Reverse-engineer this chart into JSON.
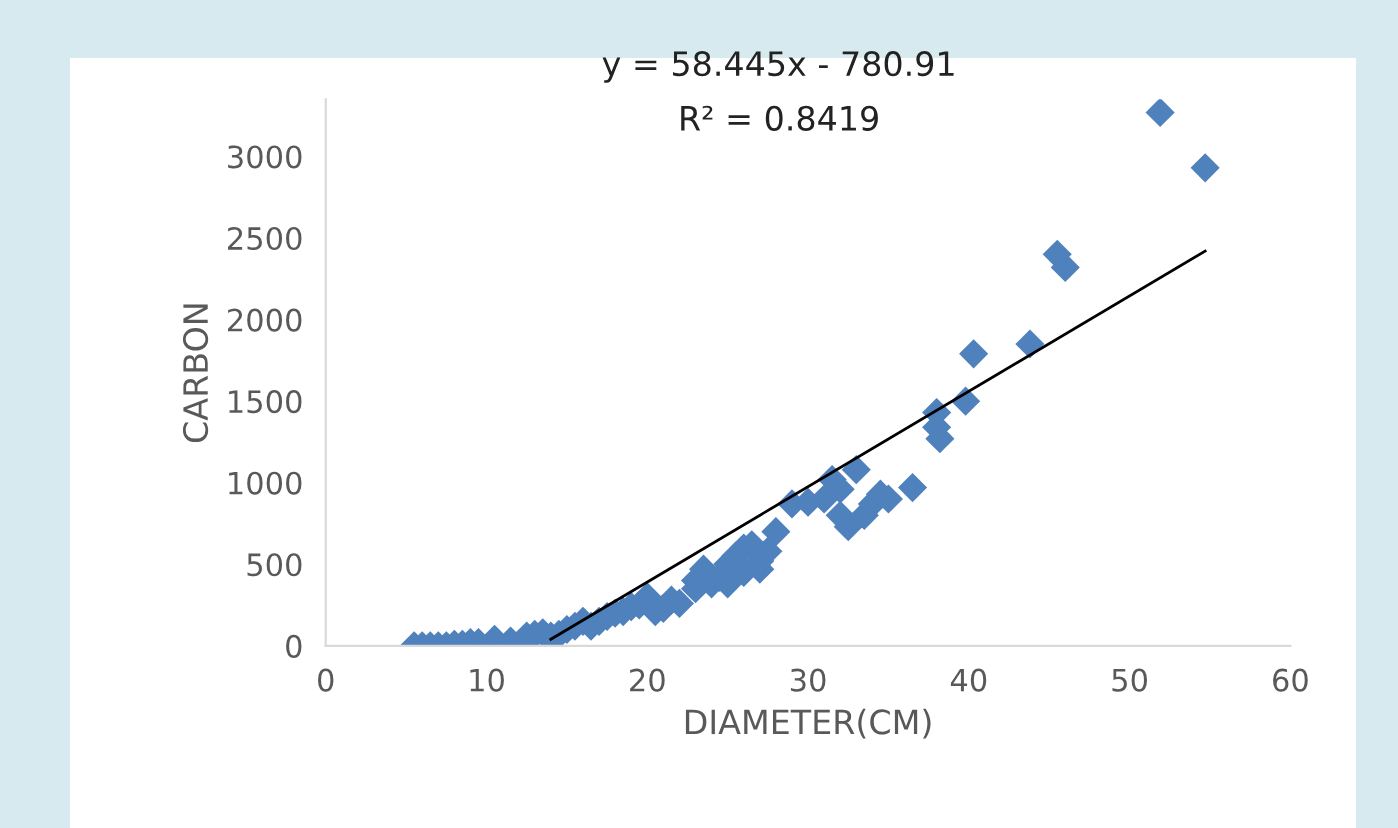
{
  "chart_data": {
    "type": "scatter",
    "xlabel": "DIAMETER(CM)",
    "ylabel": "CARBON",
    "annotations": [
      "y = 58.445x - 780.91",
      "R² = 0.8419"
    ],
    "xlim": [
      0,
      60
    ],
    "xticks": [
      0,
      10,
      20,
      30,
      40,
      50,
      60
    ],
    "ylim": [
      0,
      3350
    ],
    "yticks": [
      0,
      500,
      1000,
      1500,
      2000,
      2500,
      3000
    ],
    "grid": false,
    "legend": false,
    "marker": "diamond",
    "series": [
      {
        "color": "#4f81bd",
        "x": [
          5.5,
          6,
          6.5,
          7,
          7.5,
          8,
          8.5,
          9,
          9.5,
          10.5,
          11.5,
          12.5,
          13,
          13.5,
          14,
          14.5,
          15,
          15.5,
          16,
          16.5,
          17,
          17.5,
          18,
          18.5,
          19,
          19.5,
          20,
          20.5,
          21,
          21.5,
          22,
          23,
          23,
          23.5,
          24,
          24.5,
          25,
          25,
          25.5,
          26,
          26,
          26.5,
          27,
          27,
          27.5,
          28,
          29,
          30,
          31,
          31.5,
          32,
          32,
          32.5,
          33,
          33.5,
          34,
          34.5,
          35,
          36.5,
          38,
          38,
          38.2,
          39.8,
          40.3,
          43.8,
          45.5,
          46,
          51.9,
          54.7
        ],
        "values": [
          0,
          0,
          0,
          0,
          0,
          10,
          10,
          20,
          20,
          40,
          30,
          60,
          70,
          80,
          60,
          70,
          100,
          120,
          150,
          120,
          150,
          180,
          200,
          210,
          240,
          250,
          300,
          210,
          230,
          280,
          260,
          400,
          350,
          470,
          380,
          420,
          500,
          380,
          550,
          600,
          450,
          620,
          470,
          520,
          580,
          700,
          870,
          880,
          900,
          1020,
          800,
          960,
          730,
          1080,
          800,
          870,
          930,
          900,
          970,
          1430,
          1340,
          1270,
          1500,
          1790,
          1850,
          2400,
          2320,
          3270,
          2930
        ]
      },
      {
        "type": "line",
        "color": "#000000",
        "marker": "none",
        "x": [
          14,
          54.7
        ],
        "values": [
          40,
          2420
        ]
      }
    ]
  }
}
